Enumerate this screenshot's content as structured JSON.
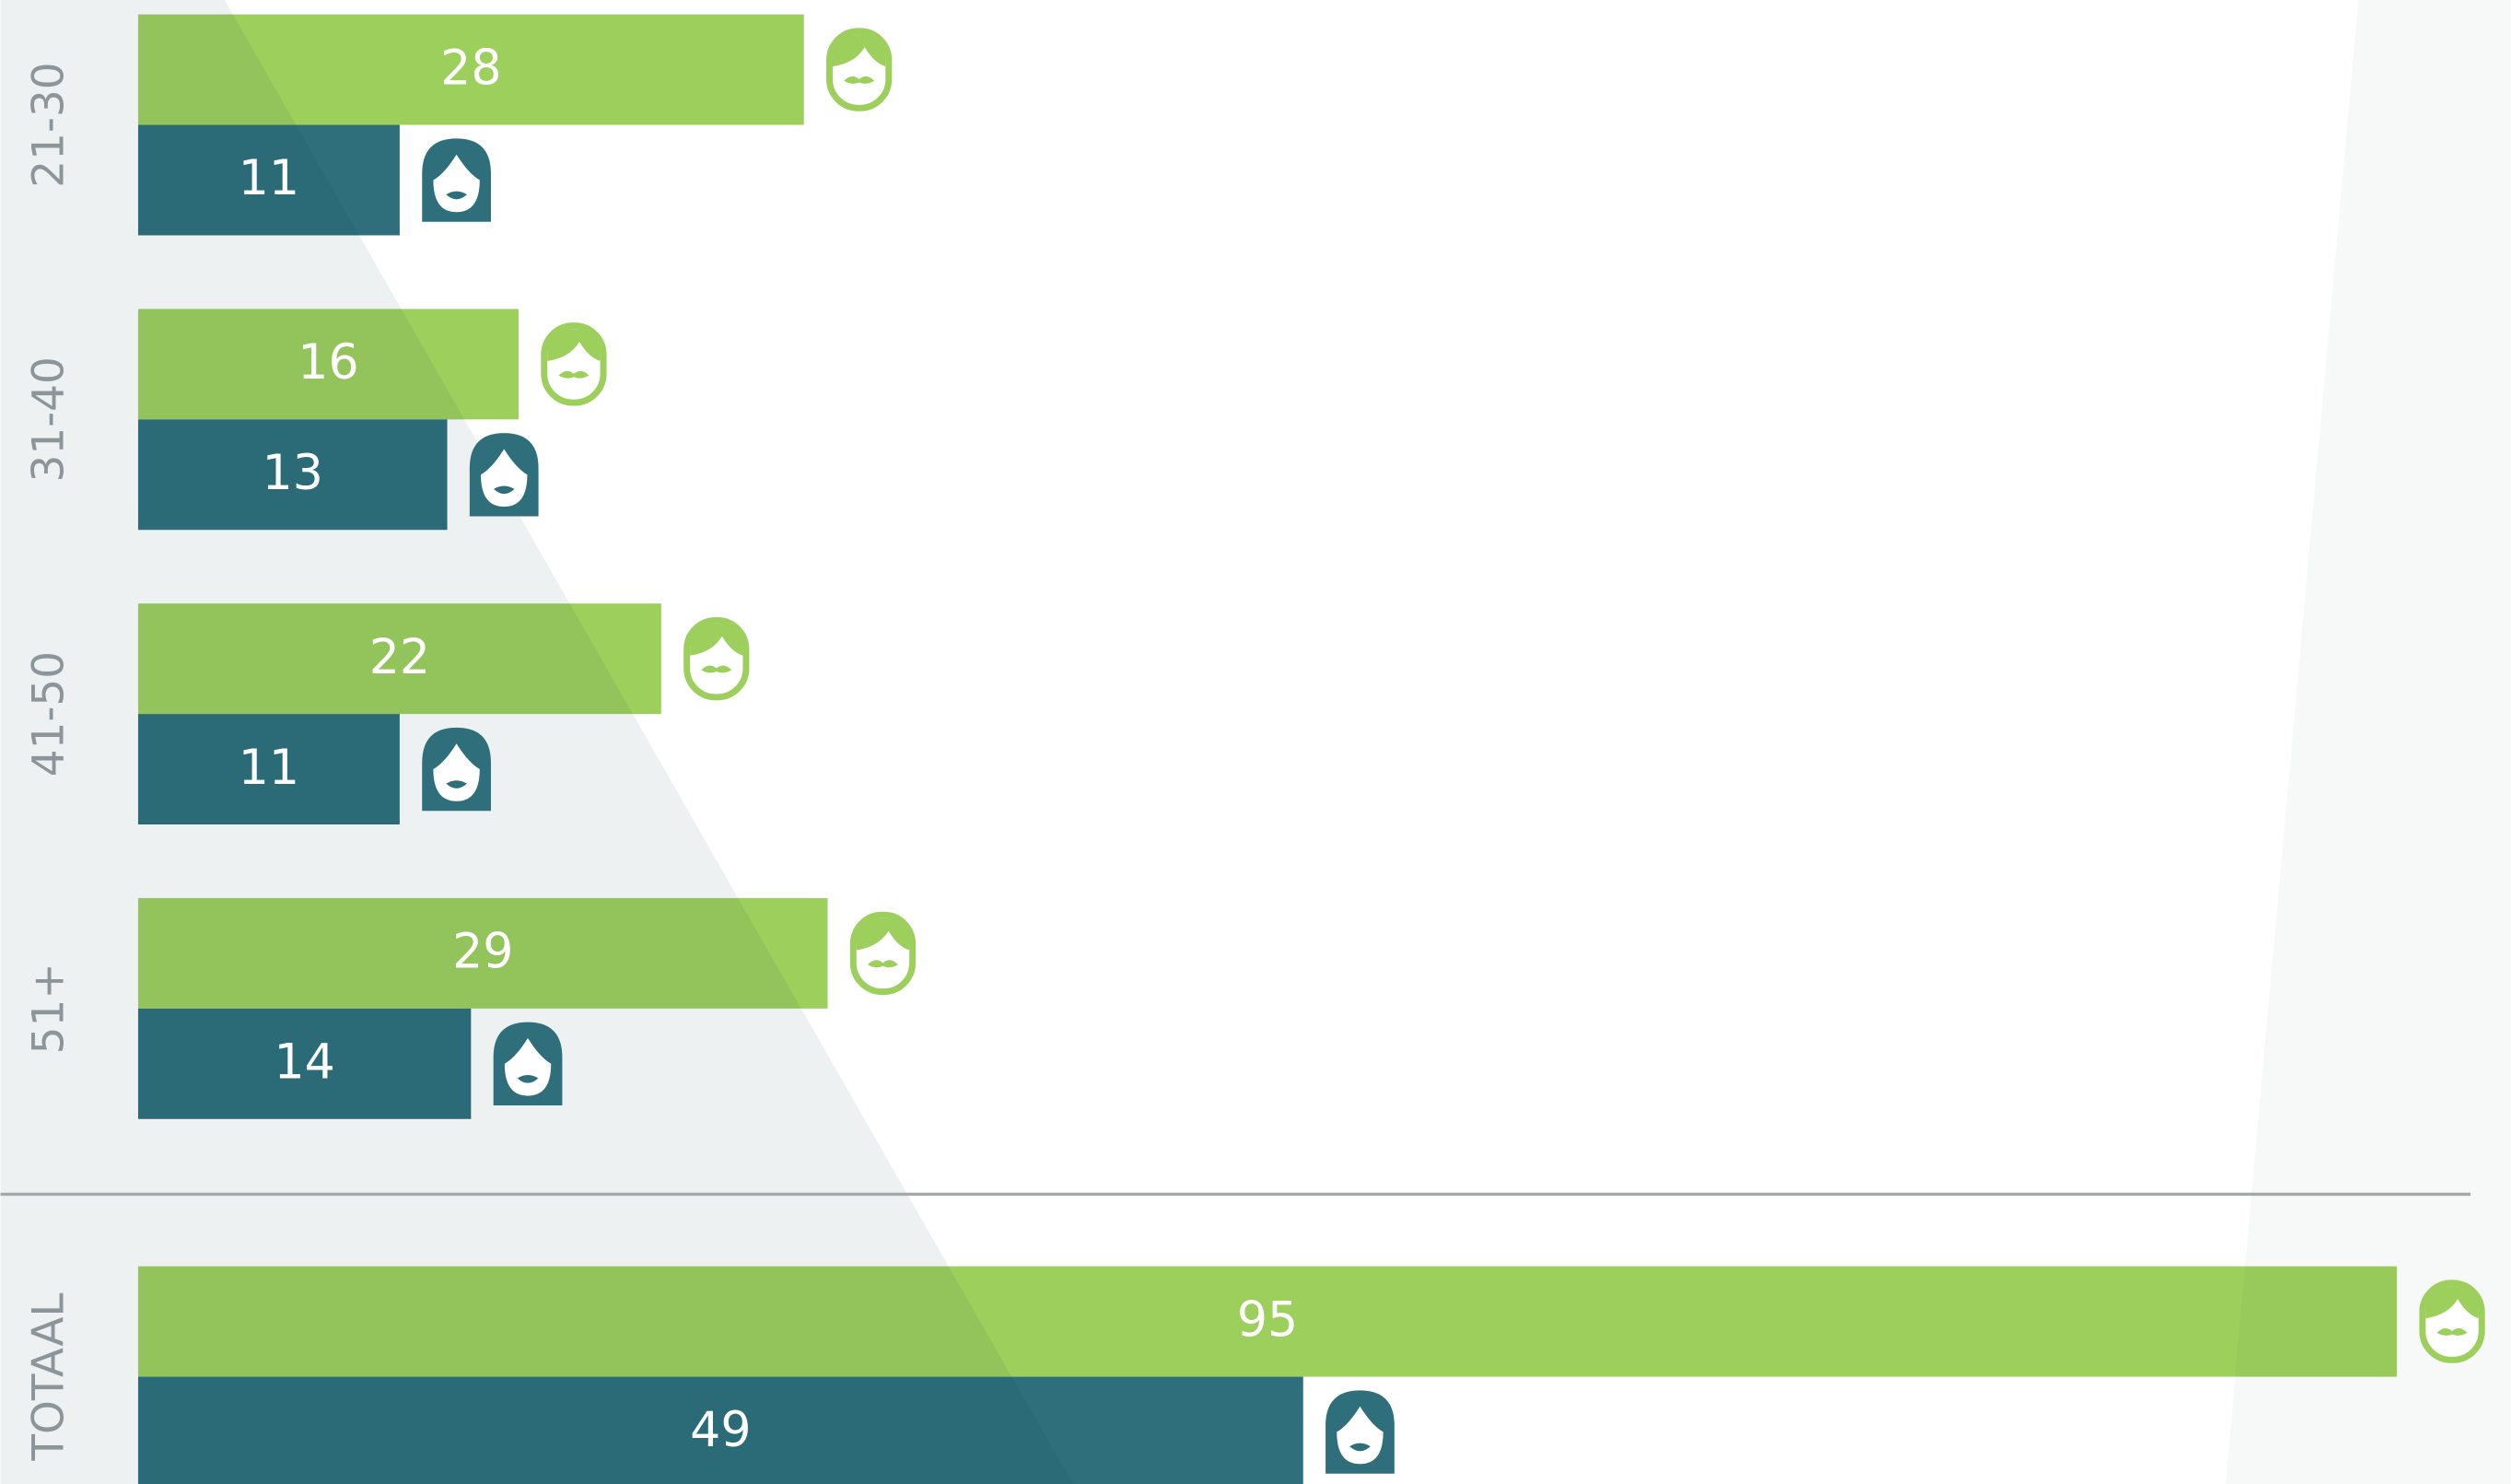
{
  "chart_data": {
    "type": "bar",
    "orientation": "horizontal",
    "categories": [
      "21-30",
      "31-40",
      "41-50",
      "51+",
      "TOTAAL"
    ],
    "series": [
      {
        "color": "#9dcf5d",
        "values": [
          28,
          16,
          22,
          29,
          95
        ]
      },
      {
        "color": "#2e6f7b",
        "values": [
          11,
          13,
          11,
          14,
          49
        ]
      }
    ]
  }
}
